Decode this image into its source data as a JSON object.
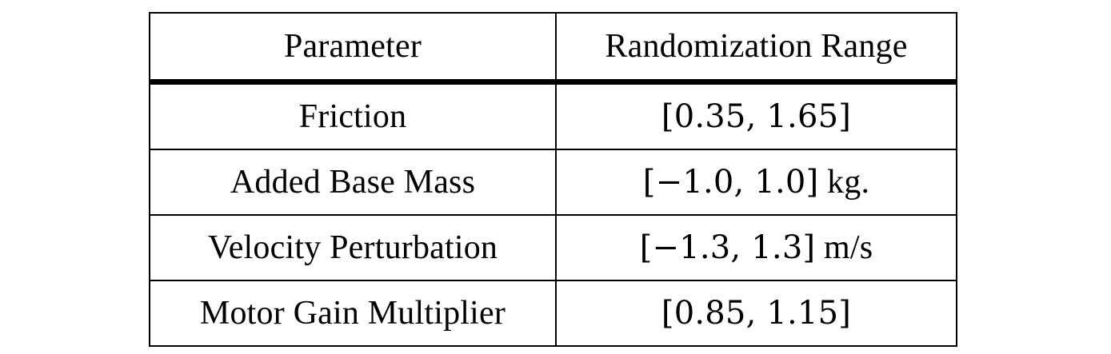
{
  "table": {
    "headers": [
      "Parameter",
      "Randomization Range"
    ],
    "rows": [
      {
        "parameter": "Friction",
        "range": "[0.35, 1.65]",
        "unit": ""
      },
      {
        "parameter": "Added Base Mass",
        "range": "[−1.0, 1.0]",
        "unit": "kg."
      },
      {
        "parameter": "Velocity Perturbation",
        "range": "[−1.3, 1.3]",
        "unit": "m/s"
      },
      {
        "parameter": "Motor Gain Multiplier",
        "range": "[0.85, 1.15]",
        "unit": ""
      }
    ]
  }
}
